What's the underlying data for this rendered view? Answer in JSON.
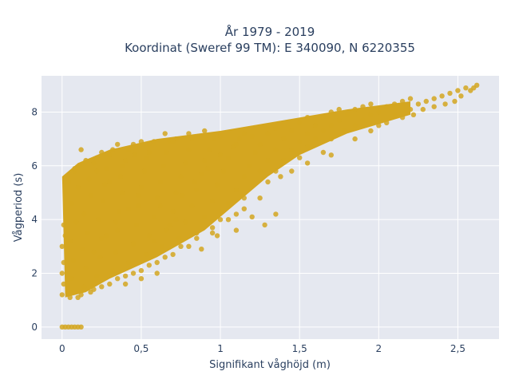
{
  "chart_data": {
    "type": "scatter",
    "title_line1": "År 1979 - 2019",
    "title_line2": "Koordinat (Sweref 99 TM): E 340090, N 6220355",
    "xlabel": "Signifikant våghöjd (m)",
    "ylabel": "Vågperiod (s)",
    "xlim": [
      -0.13,
      2.76
    ],
    "ylim": [
      -0.45,
      9.35
    ],
    "x_ticks": [
      0,
      0.5,
      1,
      1.5,
      2,
      2.5
    ],
    "x_tick_labels": [
      "0",
      "0,5",
      "1",
      "1,5",
      "2",
      "2,5"
    ],
    "y_ticks": [
      0,
      2,
      4,
      6,
      8
    ],
    "y_tick_labels": [
      "0",
      "2",
      "4",
      "6",
      "8"
    ],
    "grid": true,
    "marker_color": "#d4a620",
    "plot_background": "#e5e8f0",
    "series": [
      {
        "values": [
          [
            0.0,
            0.0
          ],
          [
            0.02,
            0.0
          ],
          [
            0.04,
            0.0
          ],
          [
            0.06,
            0.0
          ],
          [
            0.08,
            0.0
          ],
          [
            0.1,
            0.0
          ],
          [
            0.12,
            0.0
          ],
          [
            0.0,
            1.2
          ],
          [
            0.01,
            1.6
          ],
          [
            0.0,
            2.0
          ],
          [
            0.01,
            2.4
          ],
          [
            0.0,
            3.0
          ],
          [
            0.02,
            3.4
          ],
          [
            0.01,
            3.8
          ],
          [
            0.03,
            4.4
          ],
          [
            0.02,
            5.0
          ],
          [
            0.04,
            5.4
          ],
          [
            0.05,
            1.1
          ],
          [
            0.08,
            1.3
          ],
          [
            0.06,
            1.8
          ],
          [
            0.07,
            2.5
          ],
          [
            0.05,
            3.2
          ],
          [
            0.09,
            3.9
          ],
          [
            0.06,
            4.6
          ],
          [
            0.1,
            5.2
          ],
          [
            0.08,
            5.8
          ],
          [
            0.11,
            6.0
          ],
          [
            0.12,
            1.2
          ],
          [
            0.14,
            1.5
          ],
          [
            0.15,
            2.2
          ],
          [
            0.13,
            2.9
          ],
          [
            0.16,
            3.5
          ],
          [
            0.14,
            4.2
          ],
          [
            0.18,
            4.9
          ],
          [
            0.17,
            5.5
          ],
          [
            0.2,
            6.1
          ],
          [
            0.22,
            6.3
          ],
          [
            0.2,
            1.4
          ],
          [
            0.22,
            1.9
          ],
          [
            0.24,
            2.6
          ],
          [
            0.25,
            3.3
          ],
          [
            0.23,
            4.0
          ],
          [
            0.26,
            4.7
          ],
          [
            0.27,
            5.3
          ],
          [
            0.28,
            5.9
          ],
          [
            0.3,
            6.4
          ],
          [
            0.32,
            6.6
          ],
          [
            0.3,
            1.6
          ],
          [
            0.32,
            2.1
          ],
          [
            0.34,
            2.8
          ],
          [
            0.35,
            3.6
          ],
          [
            0.36,
            4.3
          ],
          [
            0.38,
            5.0
          ],
          [
            0.37,
            5.6
          ],
          [
            0.4,
            6.2
          ],
          [
            0.42,
            6.6
          ],
          [
            0.45,
            6.8
          ],
          [
            0.4,
            1.9
          ],
          [
            0.42,
            2.4
          ],
          [
            0.45,
            3.1
          ],
          [
            0.47,
            3.8
          ],
          [
            0.48,
            4.5
          ],
          [
            0.5,
            5.2
          ],
          [
            0.52,
            5.8
          ],
          [
            0.53,
            6.3
          ],
          [
            0.55,
            6.8
          ],
          [
            0.58,
            6.9
          ],
          [
            0.5,
            2.1
          ],
          [
            0.53,
            2.7
          ],
          [
            0.55,
            3.4
          ],
          [
            0.58,
            4.1
          ],
          [
            0.6,
            4.8
          ],
          [
            0.62,
            5.4
          ],
          [
            0.64,
            6.0
          ],
          [
            0.66,
            6.5
          ],
          [
            0.68,
            6.9
          ],
          [
            0.72,
            7.0
          ],
          [
            0.6,
            2.4
          ],
          [
            0.63,
            3.0
          ],
          [
            0.66,
            3.6
          ],
          [
            0.7,
            4.3
          ],
          [
            0.72,
            5.0
          ],
          [
            0.75,
            5.6
          ],
          [
            0.78,
            6.1
          ],
          [
            0.8,
            6.6
          ],
          [
            0.82,
            7.0
          ],
          [
            0.86,
            7.1
          ],
          [
            0.7,
            2.7
          ],
          [
            0.74,
            3.3
          ],
          [
            0.78,
            3.9
          ],
          [
            0.82,
            4.5
          ],
          [
            0.85,
            5.1
          ],
          [
            0.88,
            5.7
          ],
          [
            0.9,
            6.2
          ],
          [
            0.93,
            6.6
          ],
          [
            0.96,
            7.0
          ],
          [
            1.0,
            7.1
          ],
          [
            0.8,
            3.0
          ],
          [
            0.85,
            3.5
          ],
          [
            0.9,
            4.1
          ],
          [
            0.95,
            4.7
          ],
          [
            0.98,
            5.3
          ],
          [
            1.02,
            5.8
          ],
          [
            1.05,
            6.3
          ],
          [
            1.08,
            6.7
          ],
          [
            1.12,
            7.0
          ],
          [
            1.15,
            7.2
          ],
          [
            0.95,
            3.5
          ],
          [
            1.0,
            4.0
          ],
          [
            1.05,
            4.6
          ],
          [
            1.1,
            5.1
          ],
          [
            1.15,
            5.6
          ],
          [
            1.18,
            6.0
          ],
          [
            1.22,
            6.5
          ],
          [
            1.25,
            6.8
          ],
          [
            1.3,
            7.2
          ],
          [
            1.35,
            7.4
          ],
          [
            1.1,
            4.2
          ],
          [
            1.15,
            4.8
          ],
          [
            1.2,
            5.3
          ],
          [
            1.25,
            5.8
          ],
          [
            1.3,
            6.2
          ],
          [
            1.35,
            6.6
          ],
          [
            1.4,
            7.0
          ],
          [
            1.45,
            7.3
          ],
          [
            1.5,
            7.6
          ],
          [
            1.55,
            7.8
          ],
          [
            1.3,
            5.4
          ],
          [
            1.35,
            5.8
          ],
          [
            1.4,
            6.2
          ],
          [
            1.45,
            6.6
          ],
          [
            1.5,
            6.9
          ],
          [
            1.55,
            7.2
          ],
          [
            1.6,
            7.5
          ],
          [
            1.65,
            7.8
          ],
          [
            1.7,
            8.0
          ],
          [
            1.75,
            8.1
          ],
          [
            1.5,
            6.3
          ],
          [
            1.55,
            6.7
          ],
          [
            1.6,
            7.0
          ],
          [
            1.65,
            7.3
          ],
          [
            1.7,
            7.5
          ],
          [
            1.75,
            7.7
          ],
          [
            1.8,
            7.9
          ],
          [
            1.85,
            8.1
          ],
          [
            1.9,
            8.2
          ],
          [
            1.95,
            8.3
          ],
          [
            1.7,
            7.0
          ],
          [
            1.78,
            7.3
          ],
          [
            1.85,
            7.5
          ],
          [
            1.9,
            7.7
          ],
          [
            1.95,
            7.9
          ],
          [
            2.0,
            8.0
          ],
          [
            2.05,
            8.2
          ],
          [
            2.1,
            8.3
          ],
          [
            2.15,
            8.4
          ],
          [
            2.2,
            8.5
          ],
          [
            2.0,
            7.5
          ],
          [
            2.1,
            7.9
          ],
          [
            2.2,
            8.1
          ],
          [
            2.25,
            8.3
          ],
          [
            2.3,
            8.4
          ],
          [
            2.35,
            8.5
          ],
          [
            2.4,
            8.6
          ],
          [
            2.45,
            8.7
          ],
          [
            2.5,
            8.8
          ],
          [
            2.55,
            8.9
          ],
          [
            2.58,
            8.8
          ],
          [
            2.62,
            9.0
          ],
          [
            2.6,
            8.9
          ],
          [
            2.52,
            8.6
          ],
          [
            2.48,
            8.4
          ],
          [
            2.42,
            8.3
          ],
          [
            2.35,
            8.2
          ],
          [
            2.28,
            8.1
          ],
          [
            2.22,
            7.9
          ],
          [
            2.15,
            7.8
          ],
          [
            1.65,
            6.5
          ],
          [
            1.55,
            6.1
          ],
          [
            1.45,
            5.8
          ],
          [
            1.38,
            5.6
          ],
          [
            1.25,
            4.8
          ],
          [
            1.15,
            4.4
          ],
          [
            1.05,
            4.0
          ],
          [
            0.95,
            3.7
          ],
          [
            0.85,
            3.3
          ],
          [
            0.75,
            3.0
          ],
          [
            0.65,
            2.6
          ],
          [
            0.55,
            2.3
          ],
          [
            0.45,
            2.0
          ],
          [
            0.35,
            1.8
          ],
          [
            0.25,
            1.5
          ],
          [
            0.18,
            1.3
          ],
          [
            0.1,
            1.1
          ],
          [
            0.6,
            2.0
          ],
          [
            0.5,
            1.8
          ],
          [
            0.4,
            1.6
          ],
          [
            0.7,
            6.9
          ],
          [
            0.8,
            7.2
          ],
          [
            0.9,
            7.3
          ],
          [
            0.65,
            7.2
          ],
          [
            0.5,
            6.9
          ],
          [
            0.35,
            6.8
          ],
          [
            0.25,
            6.5
          ],
          [
            0.15,
            6.2
          ],
          [
            0.08,
            5.9
          ],
          [
            0.12,
            6.6
          ],
          [
            1.2,
            4.1
          ],
          [
            1.28,
            3.8
          ],
          [
            1.35,
            4.2
          ],
          [
            0.98,
            3.4
          ],
          [
            0.88,
            2.9
          ],
          [
            1.1,
            3.6
          ],
          [
            1.7,
            6.4
          ],
          [
            1.85,
            7.0
          ],
          [
            1.95,
            7.3
          ],
          [
            2.05,
            7.6
          ],
          [
            0.72,
            4.0
          ],
          [
            0.68,
            3.8
          ],
          [
            0.58,
            3.2
          ],
          [
            0.62,
            4.5
          ],
          [
            0.76,
            4.9
          ],
          [
            0.84,
            5.4
          ],
          [
            0.92,
            5.9
          ],
          [
            1.0,
            6.4
          ],
          [
            1.1,
            6.8
          ],
          [
            1.2,
            7.1
          ],
          [
            0.2,
            2.8
          ],
          [
            0.28,
            3.4
          ],
          [
            0.34,
            3.9
          ],
          [
            0.42,
            4.4
          ],
          [
            0.48,
            4.9
          ],
          [
            0.3,
            5.4
          ],
          [
            0.22,
            5.8
          ],
          [
            0.38,
            6.0
          ],
          [
            0.46,
            6.4
          ],
          [
            0.55,
            6.5
          ]
        ]
      }
    ]
  }
}
